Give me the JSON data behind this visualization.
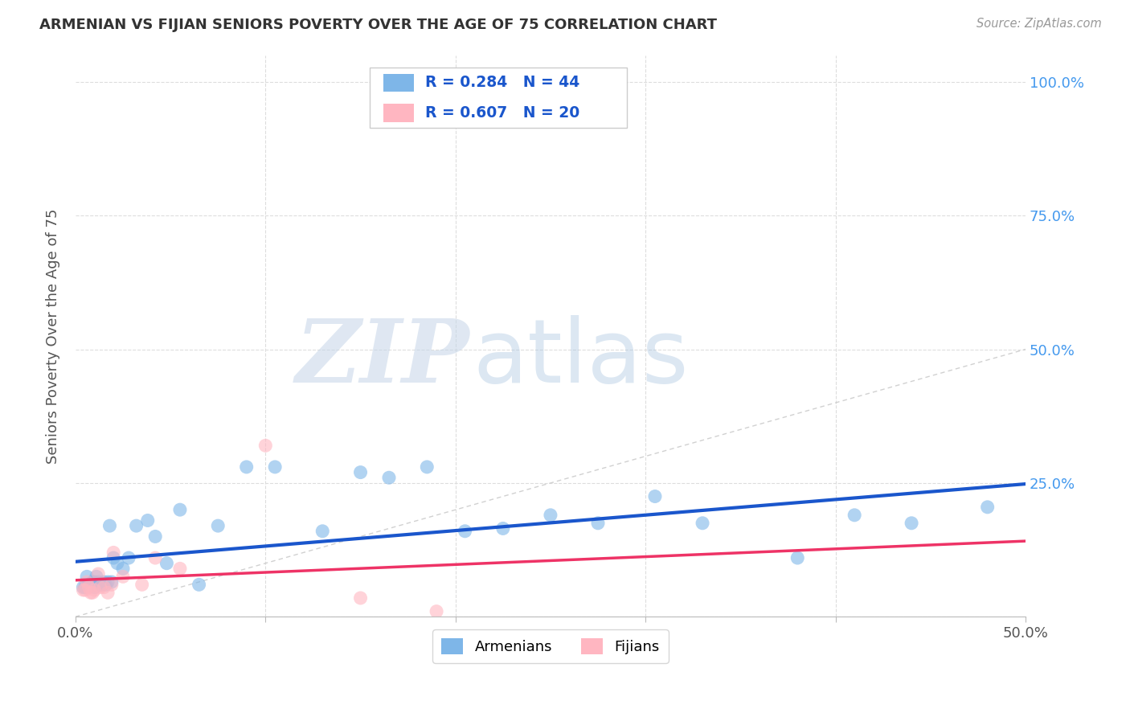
{
  "title": "ARMENIAN VS FIJIAN SENIORS POVERTY OVER THE AGE OF 75 CORRELATION CHART",
  "source": "Source: ZipAtlas.com",
  "ylabel": "Seniors Poverty Over the Age of 75",
  "xlim": [
    0.0,
    0.5
  ],
  "ylim": [
    0.0,
    1.05
  ],
  "ytick_vals": [
    0.0,
    0.25,
    0.5,
    0.75,
    1.0
  ],
  "ytick_labels_right": [
    "",
    "25.0%",
    "50.0%",
    "75.0%",
    "100.0%"
  ],
  "xtick_vals": [
    0.0,
    0.1,
    0.2,
    0.3,
    0.4,
    0.5
  ],
  "xtick_labels": [
    "0.0%",
    "",
    "",
    "",
    "",
    "50.0%"
  ],
  "armenian_color": "#7EB6E8",
  "fijian_color": "#FFB6C1",
  "trendline_armenian_color": "#1A56CC",
  "trendline_fijian_color": "#EE3366",
  "diagonal_color": "#CCCCCC",
  "legend_R_color": "#1A56CC",
  "R_armenian": 0.284,
  "N_armenian": 44,
  "R_fijian": 0.607,
  "N_fijian": 20,
  "armenian_x": [
    0.004,
    0.005,
    0.006,
    0.007,
    0.008,
    0.009,
    0.01,
    0.01,
    0.011,
    0.012,
    0.013,
    0.014,
    0.015,
    0.016,
    0.017,
    0.018,
    0.019,
    0.02,
    0.022,
    0.025,
    0.028,
    0.032,
    0.038,
    0.042,
    0.048,
    0.055,
    0.065,
    0.075,
    0.09,
    0.105,
    0.13,
    0.15,
    0.165,
    0.185,
    0.205,
    0.225,
    0.25,
    0.275,
    0.305,
    0.33,
    0.38,
    0.41,
    0.44,
    0.48
  ],
  "armenian_y": [
    0.055,
    0.055,
    0.075,
    0.06,
    0.06,
    0.065,
    0.055,
    0.065,
    0.075,
    0.065,
    0.06,
    0.06,
    0.065,
    0.06,
    0.065,
    0.17,
    0.065,
    0.11,
    0.1,
    0.09,
    0.11,
    0.17,
    0.18,
    0.15,
    0.1,
    0.2,
    0.06,
    0.17,
    0.28,
    0.28,
    0.16,
    0.27,
    0.26,
    0.28,
    0.16,
    0.165,
    0.19,
    0.175,
    0.225,
    0.175,
    0.11,
    0.19,
    0.175,
    0.205
  ],
  "fijian_x": [
    0.004,
    0.005,
    0.006,
    0.007,
    0.008,
    0.009,
    0.01,
    0.012,
    0.013,
    0.015,
    0.017,
    0.019,
    0.02,
    0.025,
    0.035,
    0.042,
    0.055,
    0.1,
    0.15,
    0.19
  ],
  "fijian_y": [
    0.05,
    0.05,
    0.065,
    0.055,
    0.045,
    0.045,
    0.05,
    0.08,
    0.055,
    0.055,
    0.045,
    0.06,
    0.12,
    0.075,
    0.06,
    0.11,
    0.09,
    0.32,
    0.035,
    0.01
  ],
  "bg_color": "#FFFFFF",
  "grid_color": "#DDDDDD",
  "tick_label_color": "#4499EE",
  "axis_label_color": "#555555",
  "title_color": "#333333",
  "source_color": "#999999"
}
